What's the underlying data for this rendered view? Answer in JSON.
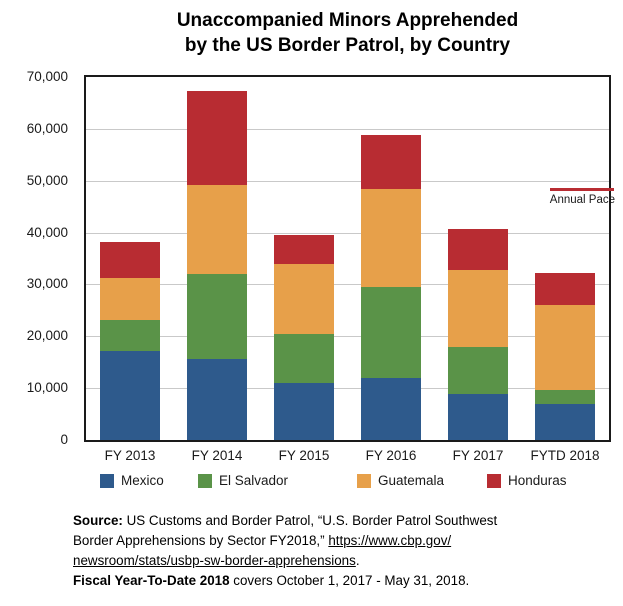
{
  "header": {
    "title_line1": "Unaccompanied Minors Apprehended",
    "title_line2": "by the US Border Patrol, by Country"
  },
  "chart_data": {
    "type": "bar",
    "stacked": true,
    "title": "Unaccompanied Minors Apprehended by the US Border Patrol, by Country",
    "categories": [
      "FY 2013",
      "FY 2014",
      "FY 2015",
      "FY 2016",
      "FY 2017",
      "FYTD 2018"
    ],
    "series": [
      {
        "name": "Mexico",
        "color": "#2E5A8C",
        "values": [
          17200,
          15600,
          11000,
          12000,
          8900,
          6900
        ]
      },
      {
        "name": "El Salvador",
        "color": "#5A9348",
        "values": [
          6000,
          16400,
          9400,
          17500,
          9100,
          2700
        ]
      },
      {
        "name": "Guatemala",
        "color": "#E7A04A",
        "values": [
          8100,
          17100,
          13600,
          18900,
          14800,
          16500
        ]
      },
      {
        "name": "Honduras",
        "color": "#B82C32",
        "values": [
          6800,
          18300,
          5500,
          10500,
          7800,
          6200
        ]
      }
    ],
    "annotation": {
      "label": "Annual Pace",
      "value": 48400,
      "color": "#B82C32"
    },
    "ylim": [
      0,
      70000
    ],
    "ytick_step": 10000,
    "ytick_labels": [
      "70,000",
      "60,000",
      "50,000",
      "40,000",
      "30,000",
      "20,000",
      "10,000",
      "0"
    ],
    "grid": true,
    "grid_color": "#c9c9c9",
    "legend_position": "bottom"
  },
  "source": {
    "label": "Source:",
    "line1_rest": " US Customs and Border Patrol, “U.S. Border Patrol Southwest",
    "line2_prefix": "Border Apprehensions by Sector FY2018,” ",
    "line2_link": "https://www.cbp.gov/",
    "line3_link": "newsroom/stats/usbp-sw-border-apprehensions",
    "line3_suffix": ".",
    "fytd_label": "Fiscal Year-To-Date 2018",
    "fytd_rest": " covers October 1, 2017 - May 31, 2018."
  }
}
